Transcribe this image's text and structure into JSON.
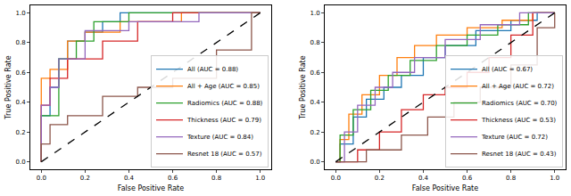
{
  "chart_data": [
    {
      "type": "line",
      "x_label": "False Positive Rate",
      "y_label": "True Positive Rate",
      "xlim": [
        -0.05,
        1.05
      ],
      "ylim": [
        -0.05,
        1.05
      ],
      "xticks": [
        {
          "value": 0,
          "label": "0.0"
        },
        {
          "value": 0.2,
          "label": "0.2"
        },
        {
          "value": 0.4,
          "label": "0.4"
        },
        {
          "value": 0.6,
          "label": "0.6"
        },
        {
          "value": 0.8,
          "label": "0.8"
        },
        {
          "value": 1,
          "label": "1.0"
        }
      ],
      "yticks": [
        {
          "value": 0,
          "label": "0.0"
        },
        {
          "value": 0.2,
          "label": "0.2"
        },
        {
          "value": 0.4,
          "label": "0.4"
        },
        {
          "value": 0.6,
          "label": "0.6"
        },
        {
          "value": 0.8,
          "label": "0.8"
        },
        {
          "value": 1,
          "label": "1.0"
        }
      ],
      "grid": false,
      "legend": "lower right",
      "series": [
        {
          "name": "All (AUC = 0.88)",
          "color": "#1f77b4",
          "x": [
            0,
            0,
            0.04,
            0.04,
            0.08,
            0.08,
            0.12,
            0.12,
            0.2,
            0.2,
            0.28,
            0.28,
            0.36,
            0.36,
            1
          ],
          "values": [
            0,
            0.31,
            0.31,
            0.5,
            0.5,
            0.69,
            0.69,
            0.81,
            0.81,
            0.87,
            0.87,
            0.94,
            0.94,
            1,
            1
          ]
        },
        {
          "name": "All + Age (AUC = 0.85)",
          "color": "#ff7f0e",
          "x": [
            0,
            0,
            0.04,
            0.04,
            0.12,
            0.12,
            0.2,
            0.2,
            0.36,
            0.36,
            0.64,
            0.64,
            1
          ],
          "values": [
            0,
            0.56,
            0.56,
            0.62,
            0.62,
            0.81,
            0.81,
            0.87,
            0.87,
            0.94,
            0.94,
            1,
            1
          ]
        },
        {
          "name": "Radiomics (AUC = 0.88)",
          "color": "#2ca02c",
          "x": [
            0,
            0,
            0.08,
            0.08,
            0.16,
            0.16,
            0.24,
            0.24,
            0.4,
            0.4,
            1
          ],
          "values": [
            0,
            0.31,
            0.31,
            0.69,
            0.69,
            0.81,
            0.81,
            0.94,
            0.94,
            1,
            1
          ]
        },
        {
          "name": "Thickness (AUC = 0.79)",
          "color": "#d62728",
          "x": [
            0,
            0,
            0.04,
            0.04,
            0.12,
            0.12,
            0.28,
            0.28,
            0.44,
            0.44,
            0.6,
            0.6,
            1
          ],
          "values": [
            0,
            0.38,
            0.38,
            0.56,
            0.56,
            0.69,
            0.69,
            0.81,
            0.81,
            0.94,
            0.94,
            1,
            1
          ]
        },
        {
          "name": "Texture (AUC = 0.84)",
          "color": "#9467bd",
          "x": [
            0,
            0,
            0.04,
            0.04,
            0.08,
            0.08,
            0.2,
            0.2,
            0.4,
            0.4,
            0.72,
            0.72,
            1
          ],
          "values": [
            0,
            0.38,
            0.38,
            0.5,
            0.5,
            0.69,
            0.69,
            0.88,
            0.88,
            0.94,
            0.94,
            1,
            1
          ]
        },
        {
          "name": "Resnet 18 (AUC = 0.57)",
          "color": "#8c564b",
          "x": [
            0,
            0,
            0.04,
            0.04,
            0.12,
            0.12,
            0.28,
            0.28,
            0.44,
            0.44,
            0.6,
            0.6,
            0.8,
            0.8,
            0.96,
            0.96,
            1
          ],
          "values": [
            0,
            0.12,
            0.12,
            0.25,
            0.25,
            0.31,
            0.31,
            0.44,
            0.44,
            0.5,
            0.5,
            0.56,
            0.56,
            0.75,
            0.75,
            1,
            1
          ]
        },
        {
          "color": "#000000",
          "line_style": "dashed",
          "x": [
            0,
            1
          ],
          "values": [
            0,
            1
          ]
        }
      ]
    },
    {
      "type": "line",
      "x_label": "False Positive Rate",
      "y_label": "True Positive Rate",
      "xlim": [
        -0.05,
        1.05
      ],
      "ylim": [
        -0.05,
        1.05
      ],
      "xticks": [
        {
          "value": 0,
          "label": "0.0"
        },
        {
          "value": 0.2,
          "label": "0.2"
        },
        {
          "value": 0.4,
          "label": "0.4"
        },
        {
          "value": 0.6,
          "label": "0.6"
        },
        {
          "value": 0.8,
          "label": "0.8"
        },
        {
          "value": 1,
          "label": "1.0"
        }
      ],
      "yticks": [
        {
          "value": 0,
          "label": "0.0"
        },
        {
          "value": 0.2,
          "label": "0.2"
        },
        {
          "value": 0.4,
          "label": "0.4"
        },
        {
          "value": 0.6,
          "label": "0.6"
        },
        {
          "value": 0.8,
          "label": "0.8"
        },
        {
          "value": 1,
          "label": "1.0"
        }
      ],
      "grid": false,
      "legend": "lower right",
      "series": [
        {
          "name": "All (AUC = 0.67)",
          "color": "#1f77b4",
          "x": [
            0,
            0.02,
            0.02,
            0.08,
            0.08,
            0.14,
            0.14,
            0.22,
            0.22,
            0.3,
            0.3,
            0.4,
            0.4,
            0.5,
            0.5,
            0.64,
            0.64,
            0.8,
            0.8,
            0.92,
            0.92,
            1
          ],
          "values": [
            0,
            0,
            0.12,
            0.12,
            0.3,
            0.3,
            0.42,
            0.42,
            0.5,
            0.5,
            0.58,
            0.58,
            0.7,
            0.7,
            0.78,
            0.78,
            0.88,
            0.88,
            0.95,
            0.95,
            1,
            1
          ]
        },
        {
          "name": "All + Age (AUC = 0.72)",
          "color": "#ff7f0e",
          "x": [
            0,
            0.02,
            0.02,
            0.06,
            0.06,
            0.12,
            0.12,
            0.2,
            0.2,
            0.28,
            0.28,
            0.36,
            0.36,
            0.46,
            0.46,
            0.6,
            0.6,
            0.76,
            0.76,
            0.9,
            0.9,
            1
          ],
          "values": [
            0,
            0,
            0.15,
            0.15,
            0.32,
            0.32,
            0.45,
            0.45,
            0.58,
            0.58,
            0.7,
            0.7,
            0.78,
            0.78,
            0.85,
            0.85,
            0.9,
            0.9,
            0.95,
            0.95,
            1,
            1
          ]
        },
        {
          "name": "Radiomics (AUC = 0.70)",
          "color": "#2ca02c",
          "x": [
            0,
            0.02,
            0.02,
            0.08,
            0.08,
            0.16,
            0.16,
            0.24,
            0.24,
            0.34,
            0.34,
            0.46,
            0.46,
            0.6,
            0.6,
            0.74,
            0.74,
            0.88,
            0.88,
            1
          ],
          "values": [
            0,
            0,
            0.18,
            0.18,
            0.35,
            0.35,
            0.48,
            0.48,
            0.58,
            0.58,
            0.68,
            0.68,
            0.78,
            0.78,
            0.85,
            0.85,
            0.92,
            0.92,
            1,
            1
          ]
        },
        {
          "name": "Thickness (AUC = 0.53)",
          "color": "#d62728",
          "x": [
            0,
            0.1,
            0.1,
            0.2,
            0.2,
            0.3,
            0.3,
            0.4,
            0.4,
            0.5,
            0.5,
            0.6,
            0.6,
            0.7,
            0.7,
            0.8,
            0.8,
            0.9,
            0.9,
            1
          ],
          "values": [
            0,
            0,
            0.08,
            0.08,
            0.2,
            0.2,
            0.35,
            0.35,
            0.45,
            0.45,
            0.5,
            0.5,
            0.6,
            0.6,
            0.7,
            0.7,
            0.85,
            0.85,
            1,
            1
          ]
        },
        {
          "name": "Texture (AUC = 0.72)",
          "color": "#9467bd",
          "x": [
            0,
            0.04,
            0.04,
            0.1,
            0.1,
            0.18,
            0.18,
            0.26,
            0.26,
            0.36,
            0.36,
            0.5,
            0.5,
            0.66,
            0.66,
            0.84,
            0.84,
            1
          ],
          "values": [
            0,
            0,
            0.2,
            0.2,
            0.38,
            0.38,
            0.5,
            0.5,
            0.6,
            0.6,
            0.7,
            0.7,
            0.82,
            0.82,
            0.92,
            0.92,
            1,
            1
          ]
        },
        {
          "name": "Resnet 18 (AUC = 0.43)",
          "color": "#8c564b",
          "x": [
            0,
            0.14,
            0.14,
            0.3,
            0.3,
            0.42,
            0.42,
            0.54,
            0.54,
            0.66,
            0.66,
            0.8,
            0.8,
            0.92,
            0.92,
            1,
            1
          ],
          "values": [
            0,
            0,
            0.08,
            0.08,
            0.18,
            0.18,
            0.3,
            0.3,
            0.4,
            0.4,
            0.5,
            0.5,
            0.65,
            0.65,
            0.9,
            0.9,
            1
          ]
        },
        {
          "color": "#000000",
          "line_style": "dashed",
          "x": [
            0,
            1
          ],
          "values": [
            0,
            1
          ]
        }
      ]
    }
  ]
}
